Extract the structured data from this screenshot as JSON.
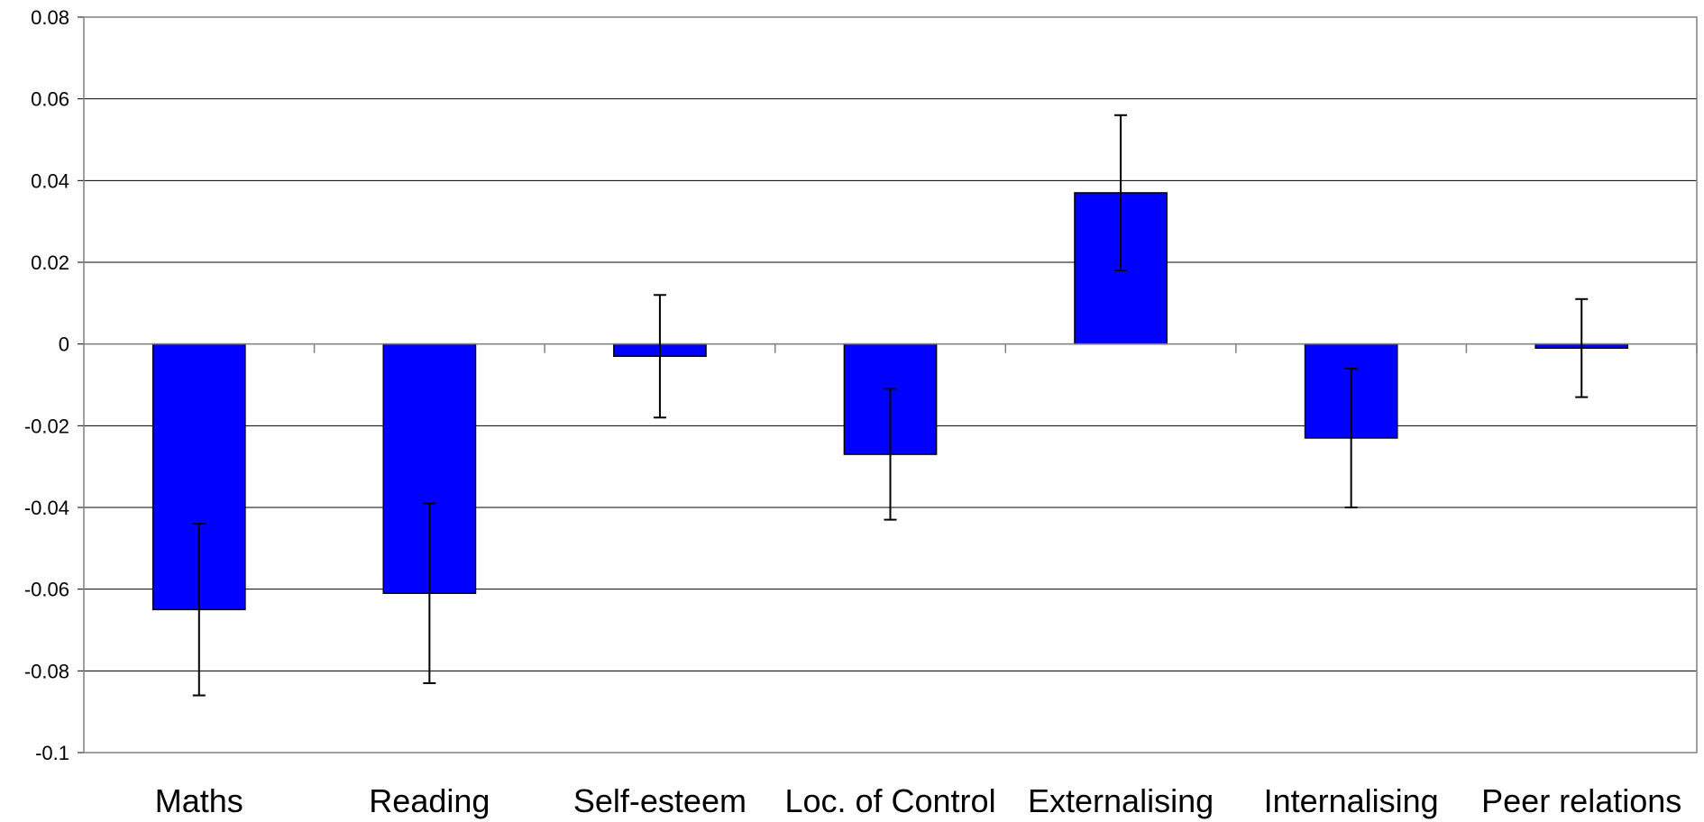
{
  "chart_data": {
    "type": "bar",
    "title": "",
    "xlabel": "",
    "ylabel": "",
    "categories": [
      "Maths",
      "Reading",
      "Self-esteem",
      "Loc. of Control",
      "Externalising",
      "Internalising",
      "Peer relations"
    ],
    "values": [
      -0.065,
      -0.061,
      -0.003,
      -0.027,
      0.037,
      -0.023,
      -0.001
    ],
    "error_low": [
      -0.086,
      -0.083,
      -0.018,
      -0.043,
      0.018,
      -0.04,
      -0.013
    ],
    "error_high": [
      -0.044,
      -0.039,
      0.012,
      -0.011,
      0.056,
      -0.006,
      0.011
    ],
    "ylim": [
      -0.1,
      0.08
    ],
    "yticks": [
      0.08,
      0.06,
      0.04,
      0.02,
      0,
      -0.02,
      -0.04,
      -0.06,
      -0.08,
      -0.1
    ],
    "ytick_labels": [
      "0.08",
      "0.06",
      "0.04",
      "0.02",
      "0",
      "-0.02",
      "-0.04",
      "-0.06",
      "-0.08",
      "-0.1"
    ],
    "grid": true,
    "legend": "none",
    "bar_color": "#0000ff"
  }
}
